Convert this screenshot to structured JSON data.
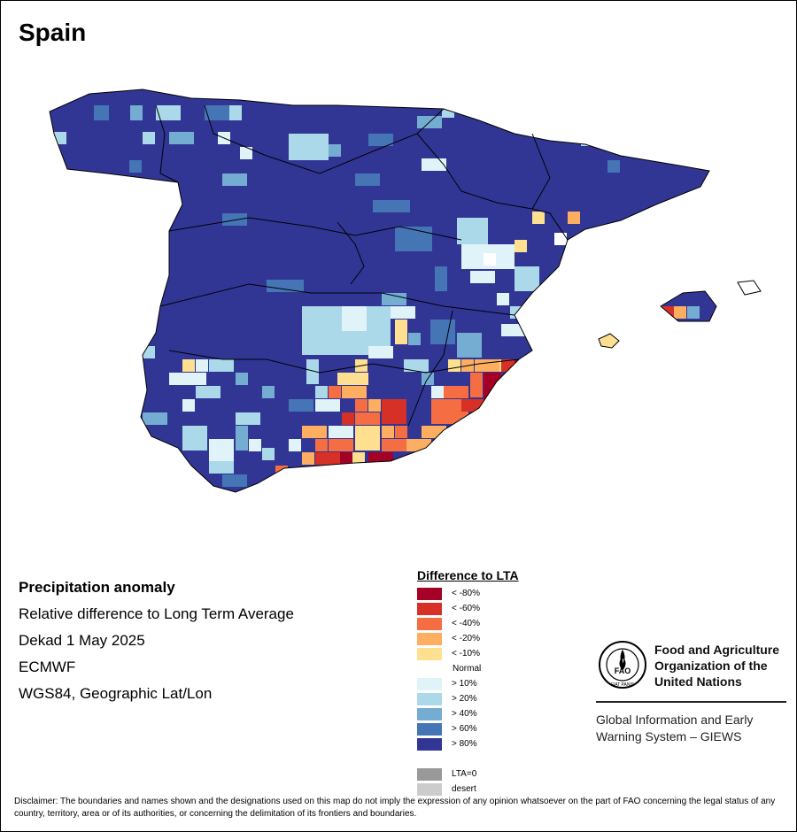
{
  "map": {
    "title": "Spain",
    "info": {
      "heading": "Precipitation anomaly",
      "line1": "Relative difference to Long Term Average",
      "line2": "Dekad 1 May 2025",
      "line3": "ECMWF",
      "line4": "WGS84, Geographic Lat/Lon"
    }
  },
  "legend": {
    "title": "Difference to LTA",
    "items": [
      {
        "label": "< -80%",
        "color": "#a50026"
      },
      {
        "label": "< -60%",
        "color": "#d73027"
      },
      {
        "label": "< -40%",
        "color": "#f46d43"
      },
      {
        "label": "< -20%",
        "color": "#fdae61"
      },
      {
        "label": "< -10%",
        "color": "#fee090"
      },
      {
        "label": "Normal",
        "color": "#ffffff"
      },
      {
        "label": "> 10%",
        "color": "#e0f3f8"
      },
      {
        "label": "> 20%",
        "color": "#abd9e9"
      },
      {
        "label": "> 40%",
        "color": "#74add1"
      },
      {
        "label": "> 60%",
        "color": "#4575b4"
      },
      {
        "label": "> 80%",
        "color": "#313695"
      },
      {
        "label": "LTA=0",
        "color": "#999999"
      },
      {
        "label": "desert",
        "color": "#cccccc"
      }
    ]
  },
  "org": {
    "logo_text": "FAO",
    "logo_ring_text": "FIAT PANIS",
    "name_line1": "Food and Agriculture",
    "name_line2": "Organization of the",
    "name_line3": "United Nations",
    "giews_line1": "Global Information and Early",
    "giews_line2": "Warning System – GIEWS"
  },
  "disclaimer": "Disclaimer: The boundaries and names shown and the designations used on this map do not imply the expression of any opinion whatsoever on the part of FAO concerning the legal status of any country, territory, area or of its authorities, or concerning the delimitation of its frontiers and boundaries."
}
